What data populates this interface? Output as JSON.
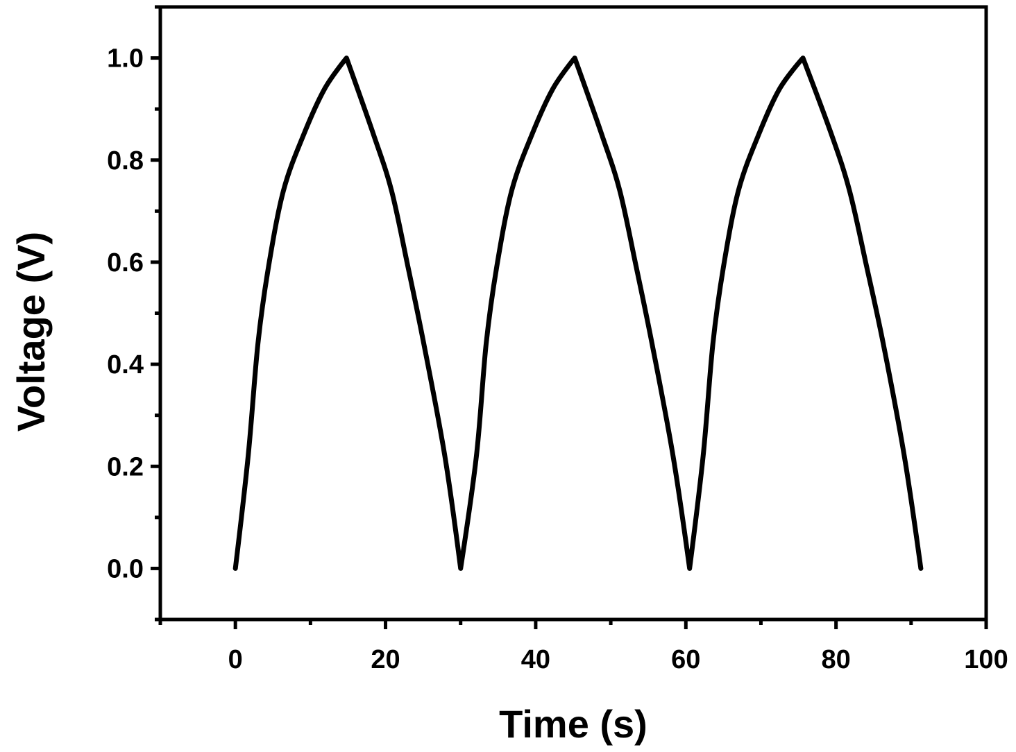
{
  "chart_data": {
    "type": "line",
    "title": "",
    "xlabel": "Time (s)",
    "ylabel": "Voltage (V)",
    "xlim": [
      -10,
      100
    ],
    "ylim": [
      -0.1,
      1.1
    ],
    "xticks": [
      0,
      20,
      40,
      60,
      80,
      100
    ],
    "xtick_labels": [
      "0",
      "20",
      "40",
      "60",
      "80",
      "100"
    ],
    "yticks": [
      0.0,
      0.2,
      0.4,
      0.6,
      0.8,
      1.0
    ],
    "ytick_labels": [
      "0.0",
      "0.2",
      "0.4",
      "0.6",
      "0.8",
      "1.0"
    ],
    "grid": false,
    "legend": "none",
    "line_color": "#000000",
    "series": [
      {
        "name": "Voltage",
        "points": [
          [
            0,
            0
          ],
          [
            1.7,
            0.22
          ],
          [
            3.0,
            0.44
          ],
          [
            4.4,
            0.59
          ],
          [
            6.4,
            0.74
          ],
          [
            9.1,
            0.85
          ],
          [
            11.9,
            0.94
          ],
          [
            14.8,
            1.0
          ],
          [
            18.4,
            0.85
          ],
          [
            20.8,
            0.74
          ],
          [
            23.0,
            0.59
          ],
          [
            25.1,
            0.44
          ],
          [
            27.9,
            0.22
          ],
          [
            30.0,
            0
          ],
          [
            32.1,
            0.22
          ],
          [
            33.4,
            0.44
          ],
          [
            34.8,
            0.59
          ],
          [
            36.8,
            0.74
          ],
          [
            39.5,
            0.85
          ],
          [
            42.3,
            0.94
          ],
          [
            45.2,
            1.0
          ],
          [
            48.8,
            0.85
          ],
          [
            51.2,
            0.74
          ],
          [
            53.4,
            0.59
          ],
          [
            55.5,
            0.44
          ],
          [
            58.3,
            0.22
          ],
          [
            60.5,
            0
          ],
          [
            62.3,
            0.22
          ],
          [
            63.6,
            0.44
          ],
          [
            65.0,
            0.59
          ],
          [
            67.0,
            0.74
          ],
          [
            69.7,
            0.85
          ],
          [
            72.5,
            0.94
          ],
          [
            75.6,
            1.0
          ],
          [
            79.4,
            0.85
          ],
          [
            81.8,
            0.74
          ],
          [
            84.1,
            0.59
          ],
          [
            86.3,
            0.44
          ],
          [
            89.1,
            0.22
          ],
          [
            91.3,
            0
          ]
        ]
      }
    ]
  }
}
